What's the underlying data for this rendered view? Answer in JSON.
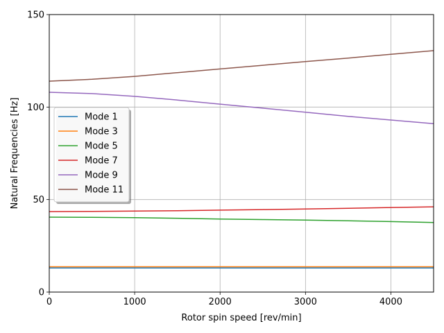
{
  "chart_data": {
    "type": "line",
    "xlabel": "Rotor spin speed [rev/min]",
    "ylabel": "Natural Frequencies [Hz]",
    "xlim": [
      0,
      4500
    ],
    "ylim": [
      0,
      150
    ],
    "xticks": [
      "0",
      "1000",
      "2000",
      "3000",
      "4000"
    ],
    "yticks": [
      "0",
      "50",
      "100",
      "150"
    ],
    "grid": true,
    "legend_position": "center-left",
    "x": [
      0,
      500,
      1000,
      1500,
      2000,
      2500,
      3000,
      3500,
      4000,
      4500
    ],
    "series": [
      {
        "name": "Mode 1",
        "color": "#1f77b4",
        "values": [
          13.0,
          13.0,
          13.0,
          13.0,
          13.0,
          13.0,
          13.0,
          13.0,
          13.0,
          13.0
        ]
      },
      {
        "name": "Mode 3",
        "color": "#ff7f0e",
        "values": [
          13.7,
          13.7,
          13.7,
          13.7,
          13.7,
          13.7,
          13.7,
          13.7,
          13.7,
          13.7
        ]
      },
      {
        "name": "Mode 5",
        "color": "#2ca02c",
        "values": [
          40.5,
          40.4,
          40.2,
          39.9,
          39.5,
          39.2,
          38.9,
          38.5,
          38.1,
          37.6
        ]
      },
      {
        "name": "Mode 7",
        "color": "#d62728",
        "values": [
          43.5,
          43.6,
          43.8,
          44.0,
          44.3,
          44.6,
          44.9,
          45.3,
          45.7,
          46.1
        ]
      },
      {
        "name": "Mode 9",
        "color": "#9467bd",
        "values": [
          108.0,
          107.3,
          105.8,
          103.8,
          101.6,
          99.4,
          97.2,
          95.0,
          93.0,
          91.0
        ]
      },
      {
        "name": "Mode 11",
        "color": "#8c564b",
        "values": [
          114.0,
          115.0,
          116.6,
          118.6,
          120.6,
          122.6,
          124.6,
          126.5,
          128.5,
          130.5
        ]
      }
    ]
  }
}
